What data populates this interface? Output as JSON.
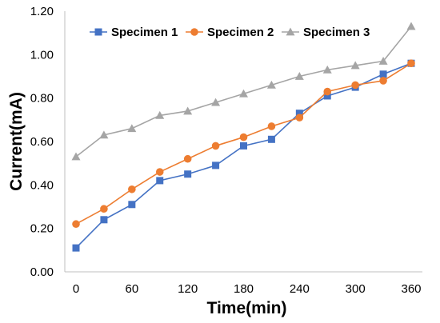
{
  "chart_data": {
    "type": "line",
    "title": "",
    "xlabel": "Time(min)",
    "ylabel": "Current(mA)",
    "x": [
      0,
      30,
      60,
      90,
      120,
      150,
      180,
      210,
      240,
      270,
      300,
      330,
      360
    ],
    "xticks": [
      "0",
      "60",
      "120",
      "180",
      "240",
      "300",
      "360"
    ],
    "xlim": [
      0,
      360
    ],
    "yticks": [
      "0.00",
      "0.20",
      "0.40",
      "0.60",
      "0.80",
      "1.00",
      "1.20"
    ],
    "ylim": [
      0,
      1.2
    ],
    "grid": false,
    "legend_position": "top",
    "series": [
      {
        "name": "Specimen 1",
        "color": "#4472C4",
        "marker": "square",
        "values": [
          0.11,
          0.24,
          0.31,
          0.42,
          0.45,
          0.49,
          0.58,
          0.61,
          0.73,
          0.81,
          0.85,
          0.91,
          0.96
        ]
      },
      {
        "name": "Specimen 2",
        "color": "#ED7D31",
        "marker": "circle",
        "values": [
          0.22,
          0.29,
          0.38,
          0.46,
          0.52,
          0.58,
          0.62,
          0.67,
          0.71,
          0.83,
          0.86,
          0.88,
          0.96
        ]
      },
      {
        "name": "Specimen 3",
        "color": "#A5A5A5",
        "marker": "triangle",
        "values": [
          0.53,
          0.63,
          0.66,
          0.72,
          0.74,
          0.78,
          0.82,
          0.86,
          0.9,
          0.93,
          0.95,
          0.97,
          1.13
        ]
      }
    ]
  }
}
